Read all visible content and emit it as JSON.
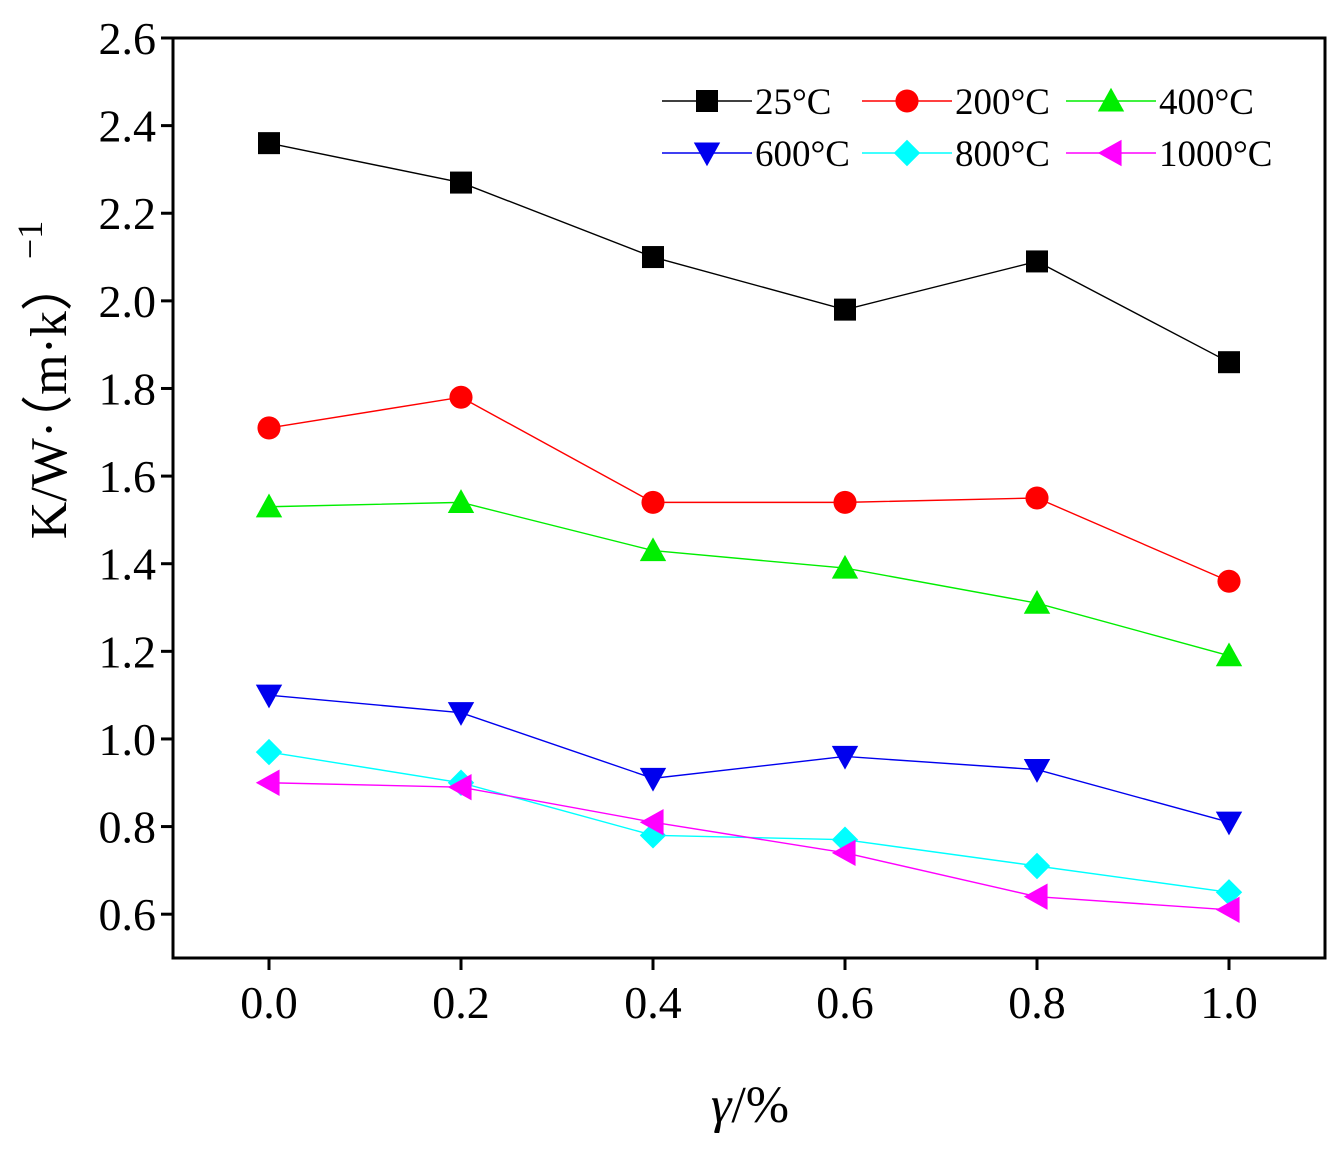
{
  "chart_data": {
    "type": "line",
    "title": "",
    "xlabel": "γ/%",
    "xlabel_symbol": "γ",
    "xlabel_unit": "/%",
    "ylabel": "K/W·（m·k）",
    "ylabel_exponent": "−1",
    "x": [
      0.0,
      0.2,
      0.4,
      0.6,
      0.8,
      1.0
    ],
    "xlim": [
      -0.1,
      1.1
    ],
    "ylim": [
      0.5,
      2.6
    ],
    "x_ticks": [
      0.0,
      0.2,
      0.4,
      0.6,
      0.8,
      1.0
    ],
    "x_tick_labels": [
      "0.0",
      "0.2",
      "0.4",
      "0.6",
      "0.8",
      "1.0"
    ],
    "y_ticks": [
      0.6,
      0.8,
      1.0,
      1.2,
      1.4,
      1.6,
      1.8,
      2.0,
      2.2,
      2.4,
      2.6
    ],
    "y_tick_labels": [
      "0.6",
      "0.8",
      "1.0",
      "1.2",
      "1.4",
      "1.6",
      "1.8",
      "2.0",
      "2.2",
      "2.4",
      "2.6"
    ],
    "grid": false,
    "legend_position": "top-right",
    "series": [
      {
        "name": "25°C",
        "marker": "square",
        "color": "#000000",
        "values": [
          2.36,
          2.27,
          2.1,
          1.98,
          2.09,
          1.86
        ]
      },
      {
        "name": "200°C",
        "marker": "circle",
        "color": "#ff0000",
        "values": [
          1.71,
          1.78,
          1.54,
          1.54,
          1.55,
          1.36
        ]
      },
      {
        "name": "400°C",
        "marker": "triangle-up",
        "color": "#00ee00",
        "values": [
          1.53,
          1.54,
          1.43,
          1.39,
          1.31,
          1.19
        ]
      },
      {
        "name": "600°C",
        "marker": "triangle-down",
        "color": "#0000ee",
        "values": [
          1.1,
          1.06,
          0.91,
          0.96,
          0.93,
          0.81
        ]
      },
      {
        "name": "800°C",
        "marker": "diamond",
        "color": "#00ffff",
        "values": [
          0.97,
          0.9,
          0.78,
          0.77,
          0.71,
          0.65
        ]
      },
      {
        "name": "1000°C",
        "marker": "triangle-left",
        "color": "#ff00ff",
        "values": [
          0.9,
          0.89,
          0.81,
          0.74,
          0.64,
          0.61
        ]
      }
    ]
  }
}
